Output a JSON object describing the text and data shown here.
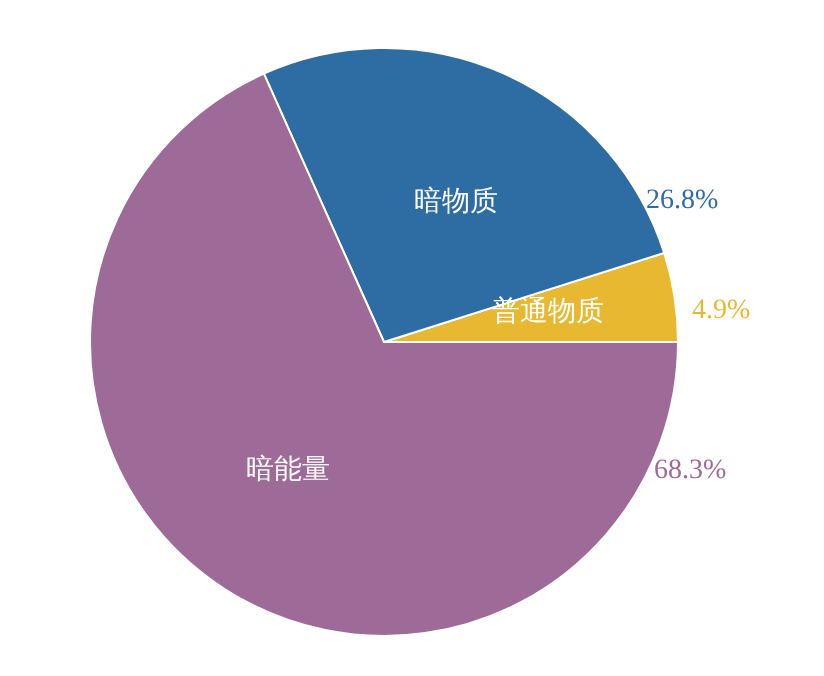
{
  "chart_data": {
    "type": "pie",
    "categories": [
      "普通物质",
      "暗物质",
      "暗能量"
    ],
    "values": [
      4.9,
      26.8,
      68.3
    ],
    "value_labels": [
      "4.9%",
      "26.8%",
      "68.3%"
    ],
    "colors": [
      "#e8b830",
      "#2e6ca4",
      "#9e6b98"
    ]
  }
}
